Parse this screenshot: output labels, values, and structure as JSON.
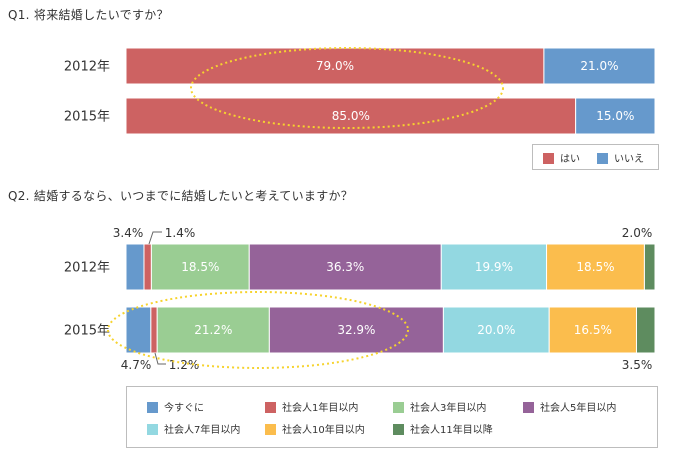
{
  "q1": {
    "title": "Q1. 将来結婚したいですか？"
  },
  "q2": {
    "title": "Q2. 結婚するなら、いつまでに結婚したいと考えていますか？"
  },
  "chart_data": [
    {
      "type": "bar",
      "orientation": "horizontal-stacked-100",
      "title": "Q1. 将来結婚したいですか？",
      "categories": [
        "2012年",
        "2015年"
      ],
      "series": [
        {
          "name": "はい",
          "color": "#CD6262",
          "values": [
            79.0,
            85.0
          ],
          "labels": [
            "79.0%",
            "85.0%"
          ]
        },
        {
          "name": "いいえ",
          "color": "#6699CC",
          "values": [
            21.0,
            15.0
          ],
          "labels": [
            "21.0%",
            "15.0%"
          ]
        }
      ],
      "legend": "bottom-right"
    },
    {
      "type": "bar",
      "orientation": "horizontal-stacked-100",
      "title": "Q2. 結婚するなら、いつまでに結婚したいと考えていますか？",
      "categories": [
        "2012年",
        "2015年"
      ],
      "series": [
        {
          "name": "今すぐに",
          "color": "#6699CC",
          "values": [
            3.4,
            4.7
          ],
          "labels": [
            "3.4%",
            "4.7%"
          ]
        },
        {
          "name": "社会人1年目以内",
          "color": "#CD6262",
          "values": [
            1.4,
            1.2
          ],
          "labels": [
            "1.4%",
            "1.2%"
          ]
        },
        {
          "name": "社会人3年目以内",
          "color": "#9ACD93",
          "values": [
            18.5,
            21.2
          ],
          "labels": [
            "18.5%",
            "21.2%"
          ]
        },
        {
          "name": "社会人5年目以内",
          "color": "#956399",
          "values": [
            36.3,
            32.9
          ],
          "labels": [
            "36.3%",
            "32.9%"
          ]
        },
        {
          "name": "社会人7年目以内",
          "color": "#93D8E1",
          "values": [
            19.9,
            20.0
          ],
          "labels": [
            "19.9%",
            "20.0%"
          ]
        },
        {
          "name": "社会人10年目以内",
          "color": "#FBBD4D",
          "values": [
            18.5,
            16.5
          ],
          "labels": [
            "18.5%",
            "16.5%"
          ]
        },
        {
          "name": "社会人11年目以降",
          "color": "#5E8C5F",
          "values": [
            2.0,
            3.5
          ],
          "labels": [
            "2.0%",
            "3.5%"
          ]
        }
      ],
      "legend": "bottom"
    }
  ],
  "colors": {
    "highlight_ellipse": "#F6D32E",
    "connector": "#666666"
  }
}
